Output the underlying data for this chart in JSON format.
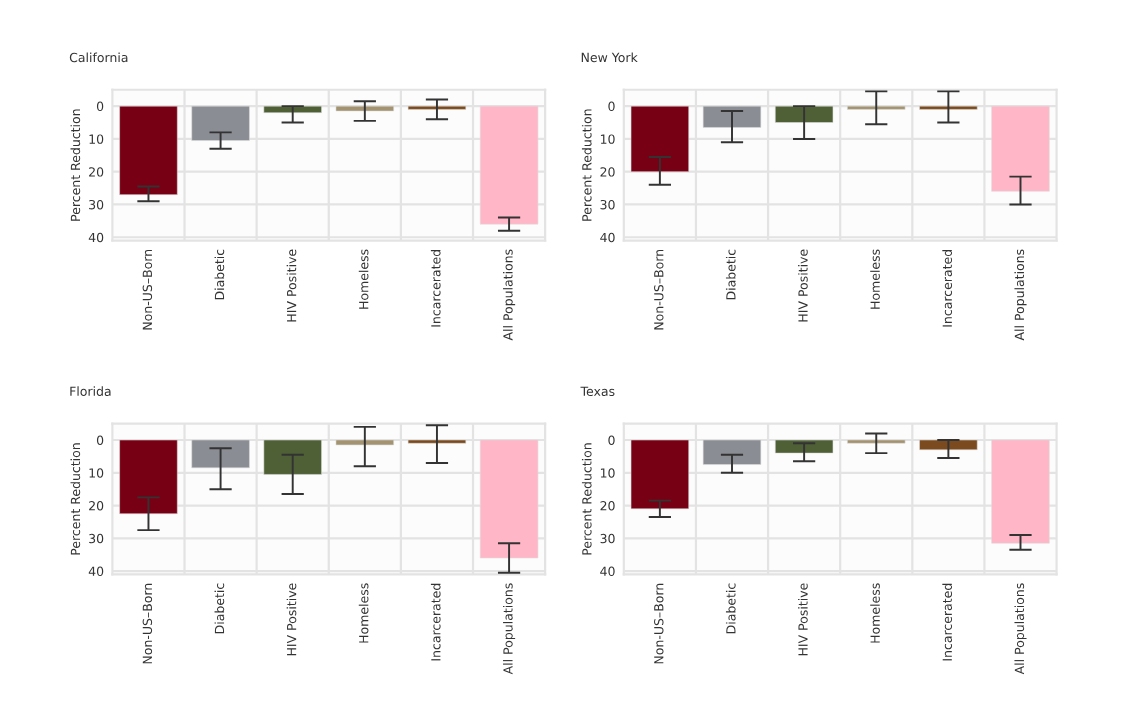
{
  "chart_data": [
    {
      "type": "bar",
      "title": "California",
      "ylabel": "Percent Reduction",
      "categories": [
        "Non-US–Born",
        "Diabetic",
        "HIV Positive",
        "Homeless",
        "Incarcerated",
        "All Populations"
      ],
      "values": [
        27,
        10.5,
        2,
        1.5,
        1,
        36
      ],
      "errors": [
        [
          24.5,
          29
        ],
        [
          8,
          13
        ],
        [
          0,
          5
        ],
        [
          -1.5,
          4.5
        ],
        [
          -2,
          4
        ],
        [
          34,
          38
        ]
      ],
      "colors": [
        "#780014",
        "#8a8d93",
        "#4f6036",
        "#a39370",
        "#7b4a1e",
        "#ffb6c6"
      ],
      "ylim": [
        41,
        -5
      ],
      "yticks": [
        0,
        10,
        20,
        30,
        40
      ],
      "grid": true,
      "legend": false
    },
    {
      "type": "bar",
      "title": "New York",
      "ylabel": "Percent Reduction",
      "categories": [
        "Non-US–Born",
        "Diabetic",
        "HIV Positive",
        "Homeless",
        "Incarcerated",
        "All Populations"
      ],
      "values": [
        20,
        6.5,
        5,
        1,
        1,
        26
      ],
      "errors": [
        [
          15.5,
          24
        ],
        [
          1.5,
          11
        ],
        [
          0,
          10
        ],
        [
          -4.5,
          5.5
        ],
        [
          -4.5,
          5
        ],
        [
          21.5,
          30
        ]
      ],
      "colors": [
        "#780014",
        "#8a8d93",
        "#4f6036",
        "#a39370",
        "#7b4a1e",
        "#ffb6c6"
      ],
      "ylim": [
        41,
        -5
      ],
      "yticks": [
        0,
        10,
        20,
        30,
        40
      ],
      "grid": true,
      "legend": false
    },
    {
      "type": "bar",
      "title": "Florida",
      "ylabel": "Percent Reduction",
      "categories": [
        "Non-US–Born",
        "Diabetic",
        "HIV Positive",
        "Homeless",
        "Incarcerated",
        "All Populations"
      ],
      "values": [
        22.5,
        8.5,
        10.5,
        1.5,
        1,
        36
      ],
      "errors": [
        [
          17.5,
          27.5
        ],
        [
          2.5,
          15
        ],
        [
          4.5,
          16.5
        ],
        [
          -4,
          8
        ],
        [
          -4.5,
          7
        ],
        [
          31.5,
          40.5
        ]
      ],
      "colors": [
        "#780014",
        "#8a8d93",
        "#4f6036",
        "#a39370",
        "#7b4a1e",
        "#ffb6c6"
      ],
      "ylim": [
        41,
        -5
      ],
      "yticks": [
        0,
        10,
        20,
        30,
        40
      ],
      "grid": true,
      "legend": false
    },
    {
      "type": "bar",
      "title": "Texas",
      "ylabel": "Percent Reduction",
      "categories": [
        "Non-US–Born",
        "Diabetic",
        "HIV Positive",
        "Homeless",
        "Incarcerated",
        "All Populations"
      ],
      "values": [
        21,
        7.5,
        4,
        1,
        3,
        31.5
      ],
      "errors": [
        [
          18.5,
          23.5
        ],
        [
          4.5,
          10
        ],
        [
          1,
          6.5
        ],
        [
          -2,
          4
        ],
        [
          0,
          5.5
        ],
        [
          29,
          33.5
        ]
      ],
      "colors": [
        "#780014",
        "#8a8d93",
        "#4f6036",
        "#a39370",
        "#7b4a1e",
        "#ffb6c6"
      ],
      "ylim": [
        41,
        -5
      ],
      "yticks": [
        0,
        10,
        20,
        30,
        40
      ],
      "grid": true,
      "legend": false
    }
  ]
}
